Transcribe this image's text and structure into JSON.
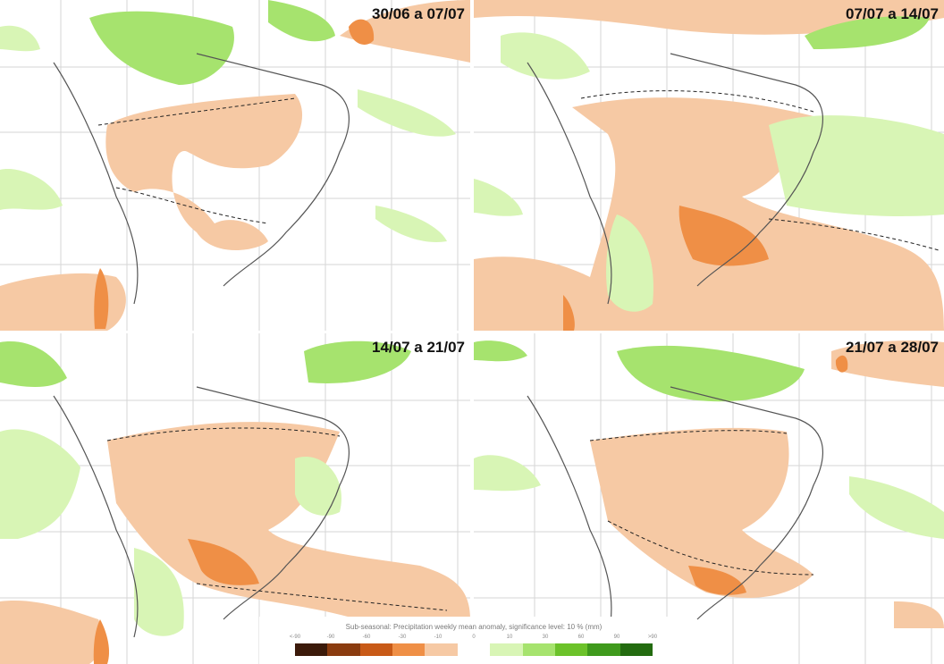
{
  "panels": [
    {
      "title": "30/06 a 07/07"
    },
    {
      "title": "07/07 a 14/07"
    },
    {
      "title": "14/07 a 21/07"
    },
    {
      "title": "21/07 a 28/07"
    }
  ],
  "legend": {
    "title": "Sub-seasonal: Precipitation weekly mean anomaly, significance level: 10 % (mm)",
    "ticks": [
      "<-90",
      "-90",
      "-60",
      "-30",
      "-10",
      "0",
      "10",
      "30",
      "60",
      "90",
      ">90"
    ],
    "colors": {
      "strong_dry": "#3b1a0a",
      "dry_90": "#8a3b0f",
      "dry_60": "#c85a17",
      "dry_30": "#ef8f46",
      "dry_10": "#f6c9a4",
      "neutral": "#ffffff",
      "wet_10": "#d8f5b5",
      "wet_30": "#a6e36e",
      "wet_60": "#6cc22a",
      "wet_90": "#3f9a1c",
      "strong_wet": "#236b10"
    }
  }
}
